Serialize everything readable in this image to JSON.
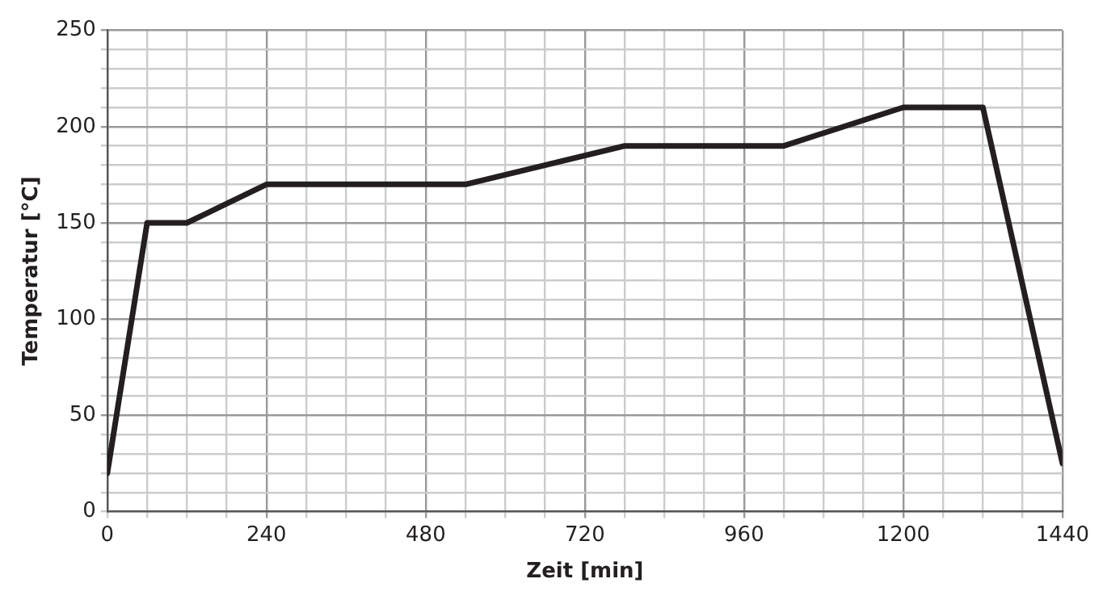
{
  "chart_data": {
    "type": "line",
    "xlabel": "Zeit [min]",
    "ylabel": "Temperatur [°C]",
    "x": [
      0,
      60,
      120,
      240,
      540,
      780,
      1020,
      1200,
      1320,
      1440
    ],
    "series": [
      {
        "color": "#231f20",
        "values": [
          20,
          150,
          150,
          170,
          170,
          190,
          190,
          210,
          210,
          25
        ]
      }
    ],
    "xlim": [
      0,
      1440
    ],
    "xticks": [
      0,
      {
        "value": 60,
        "label": null
      },
      {
        "value": 120,
        "label": null
      },
      {
        "value": 180,
        "label": null
      },
      240,
      {
        "value": 300,
        "label": null
      },
      {
        "value": 360,
        "label": null
      },
      {
        "value": 420,
        "label": null
      },
      480,
      {
        "value": 540,
        "label": null
      },
      {
        "value": 600,
        "label": null
      },
      {
        "value": 660,
        "label": null
      },
      720,
      {
        "value": 780,
        "label": null
      },
      {
        "value": 840,
        "label": null
      },
      {
        "value": 900,
        "label": null
      },
      960,
      {
        "value": 1020,
        "label": null
      },
      {
        "value": 1080,
        "label": null
      },
      {
        "value": 1140,
        "label": null
      },
      1200,
      {
        "value": 1260,
        "label": null
      },
      {
        "value": 1320,
        "label": null
      },
      {
        "value": 1380,
        "label": null
      },
      1440
    ],
    "ylim": [
      0,
      250
    ],
    "yticks": [
      0,
      {
        "value": 10,
        "label": null
      },
      {
        "value": 20,
        "label": null
      },
      {
        "value": 30,
        "label": null
      },
      {
        "value": 40,
        "label": null
      },
      50,
      {
        "value": 60,
        "label": null
      },
      {
        "value": 70,
        "label": null
      },
      {
        "value": 80,
        "label": null
      },
      {
        "value": 90,
        "label": null
      },
      100,
      {
        "value": 110,
        "label": null
      },
      {
        "value": 120,
        "label": null
      },
      {
        "value": 130,
        "label": null
      },
      {
        "value": 140,
        "label": null
      },
      150,
      {
        "value": 160,
        "label": null
      },
      {
        "value": 170,
        "label": null
      },
      {
        "value": 180,
        "label": null
      },
      {
        "value": 190,
        "label": null
      },
      200,
      {
        "value": 210,
        "label": null
      },
      {
        "value": 220,
        "label": null
      },
      {
        "value": 230,
        "label": null
      },
      {
        "value": 240,
        "label": null
      },
      250
    ],
    "grid": true,
    "marker": "none",
    "line_style": "solid",
    "legend": false
  }
}
